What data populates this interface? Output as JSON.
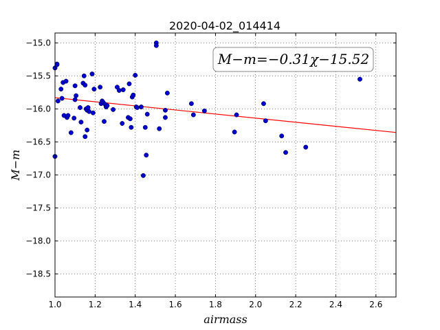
{
  "chart_data": {
    "type": "scatter",
    "title": "2020-04-02_014414",
    "xlabel": "airmass",
    "ylabel": "M−m",
    "xlim": [
      1.0,
      2.7
    ],
    "ylim": [
      -18.85,
      -14.85
    ],
    "xticks": [
      1.0,
      1.2,
      1.4,
      1.6,
      1.8,
      2.0,
      2.2,
      2.4,
      2.6
    ],
    "xtick_labels": [
      "1.0",
      "1.2",
      "1.4",
      "1.6",
      "1.8",
      "2.0",
      "2.2",
      "2.4",
      "2.6"
    ],
    "yticks": [
      -15.0,
      -15.5,
      -16.0,
      -16.5,
      -17.0,
      -17.5,
      -18.0,
      -18.5
    ],
    "ytick_labels": [
      "−15.0",
      "−15.5",
      "−16.0",
      "−16.5",
      "−17.0",
      "−17.5",
      "−18.0",
      "−18.5"
    ],
    "grid": true,
    "annotation": "M−m=−0.31χ−15.52",
    "fit": {
      "slope": -0.31,
      "intercept": -15.52,
      "color": "#ff0000"
    },
    "point_color": "#0000cc",
    "points": [
      [
        1.0,
        -15.38
      ],
      [
        1.01,
        -15.32
      ],
      [
        1.01,
        -15.33
      ],
      [
        1.0,
        -16.72
      ],
      [
        1.015,
        -15.88
      ],
      [
        1.03,
        -15.7
      ],
      [
        1.035,
        -15.84
      ],
      [
        1.04,
        -15.6
      ],
      [
        1.045,
        -16.1
      ],
      [
        1.055,
        -15.58
      ],
      [
        1.06,
        -16.13
      ],
      [
        1.065,
        -16.1
      ],
      [
        1.08,
        -16.36
      ],
      [
        1.095,
        -16.14
      ],
      [
        1.1,
        -15.65
      ],
      [
        1.1,
        -15.86
      ],
      [
        1.105,
        -15.8
      ],
      [
        1.125,
        -15.98
      ],
      [
        1.13,
        -16.2
      ],
      [
        1.14,
        -15.61
      ],
      [
        1.145,
        -15.5
      ],
      [
        1.15,
        -15.64
      ],
      [
        1.15,
        -16.42
      ],
      [
        1.155,
        -16.0
      ],
      [
        1.16,
        -16.32
      ],
      [
        1.16,
        -16.02
      ],
      [
        1.165,
        -15.98
      ],
      [
        1.17,
        -16.04
      ],
      [
        1.185,
        -15.47
      ],
      [
        1.19,
        -16.06
      ],
      [
        1.195,
        -15.7
      ],
      [
        1.225,
        -15.67
      ],
      [
        1.23,
        -15.92
      ],
      [
        1.235,
        -15.88
      ],
      [
        1.24,
        -15.9
      ],
      [
        1.245,
        -16.19
      ],
      [
        1.25,
        -15.93
      ],
      [
        1.255,
        -15.97
      ],
      [
        1.26,
        -15.95
      ],
      [
        1.29,
        -16.01
      ],
      [
        1.31,
        -15.67
      ],
      [
        1.32,
        -15.72
      ],
      [
        1.335,
        -16.22
      ],
      [
        1.34,
        -15.71
      ],
      [
        1.365,
        -16.13
      ],
      [
        1.37,
        -15.62
      ],
      [
        1.375,
        -16.15
      ],
      [
        1.38,
        -16.28
      ],
      [
        1.385,
        -15.82
      ],
      [
        1.39,
        -15.79
      ],
      [
        1.4,
        -15.49
      ],
      [
        1.405,
        -15.97
      ],
      [
        1.41,
        -15.98
      ],
      [
        1.43,
        -15.97
      ],
      [
        1.44,
        -17.01
      ],
      [
        1.45,
        -16.28
      ],
      [
        1.455,
        -16.7
      ],
      [
        1.46,
        -16.08
      ],
      [
        1.505,
        -15.0
      ],
      [
        1.505,
        -15.04
      ],
      [
        1.52,
        -16.3
      ],
      [
        1.55,
        -16.02
      ],
      [
        1.55,
        -16.13
      ],
      [
        1.56,
        -15.76
      ],
      [
        1.68,
        -15.92
      ],
      [
        1.69,
        -16.09
      ],
      [
        1.745,
        -16.03
      ],
      [
        1.895,
        -16.35
      ],
      [
        1.905,
        -16.09
      ],
      [
        2.04,
        -15.92
      ],
      [
        2.05,
        -16.18
      ],
      [
        2.13,
        -16.41
      ],
      [
        2.15,
        -16.66
      ],
      [
        2.25,
        -16.58
      ],
      [
        2.52,
        -15.55
      ]
    ]
  }
}
